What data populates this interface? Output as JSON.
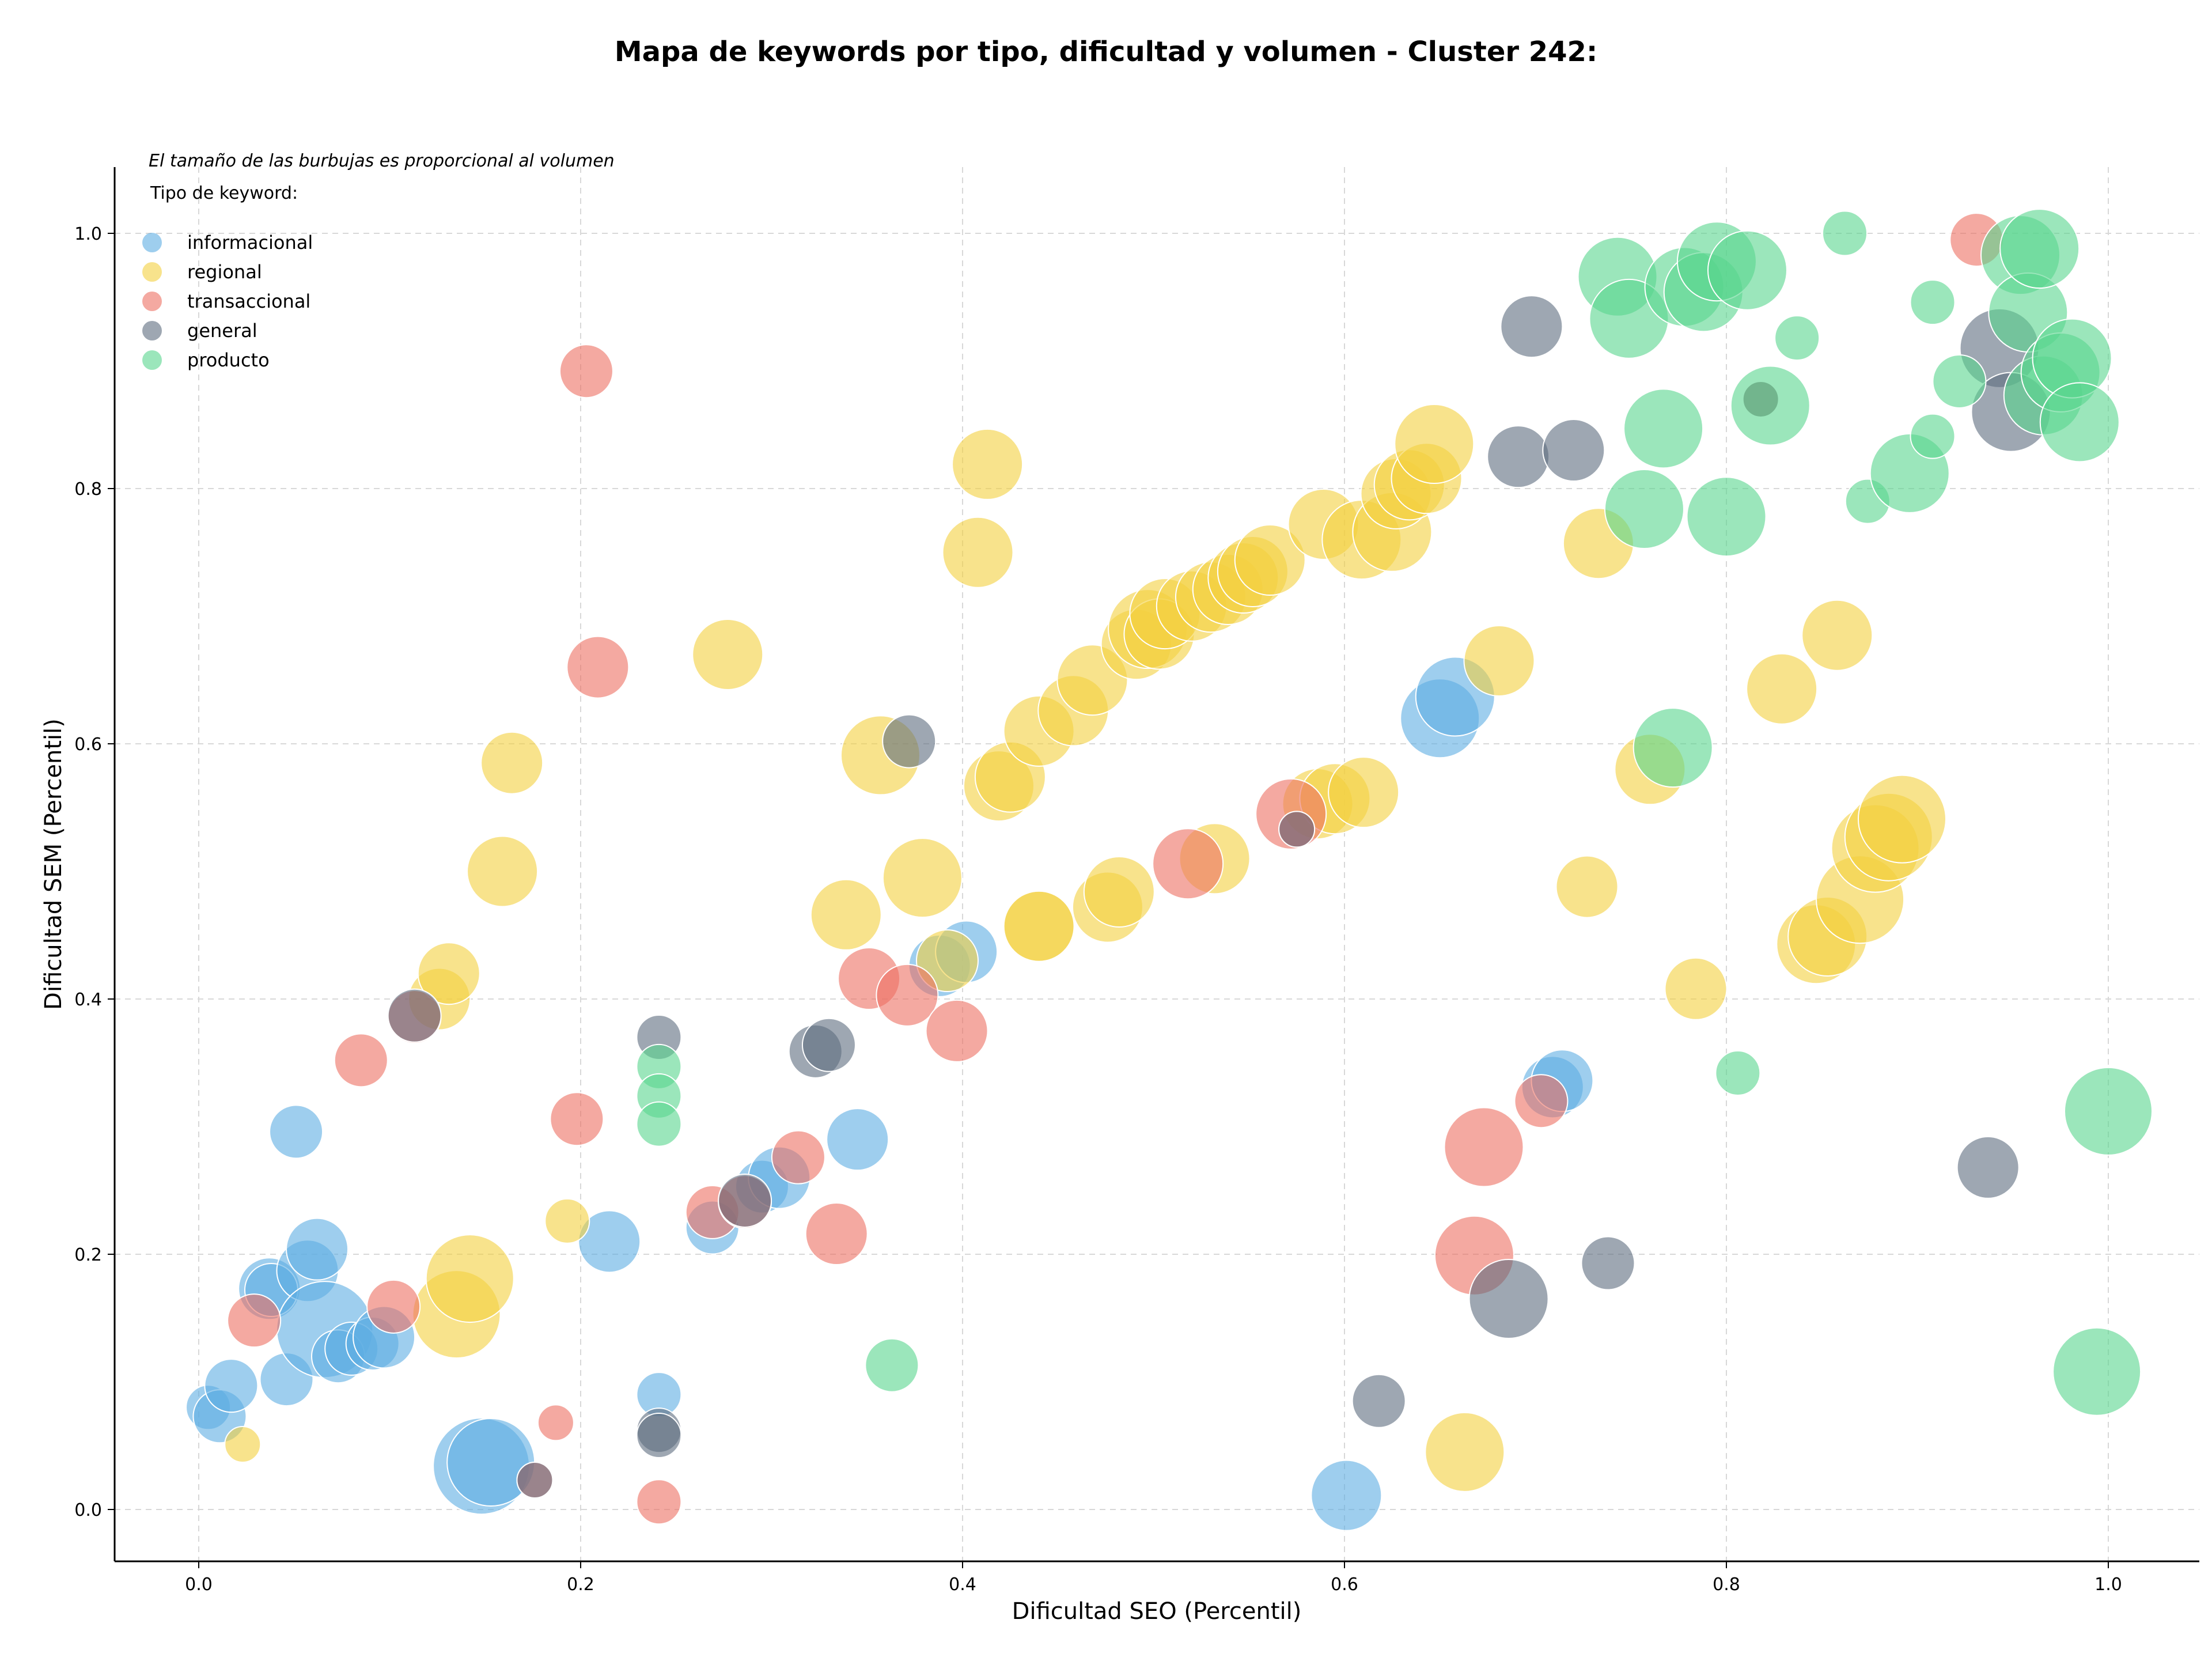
{
  "chart_data": {
    "type": "scatter",
    "title": "Mapa de keywords por tipo, dificultad y volumen - Cluster 242:",
    "xlabel": "Dificultad SEO (Percentil)",
    "ylabel": "Dificultad SEM (Percentil)",
    "xlim": [
      -0.045,
      1.05
    ],
    "ylim": [
      -0.045,
      1.05
    ],
    "xticks": [
      "0.0",
      "0.2",
      "0.4",
      "0.6",
      "0.8",
      "1.0"
    ],
    "yticks": [
      "0.0",
      "0.2",
      "0.4",
      "0.6",
      "0.8",
      "1.0"
    ],
    "grid": true,
    "annotation": "El tamaño de las burbujas es proporcional al volumen",
    "legend_title": "Tipo de keyword:",
    "legend_position": "top-left",
    "series": [
      {
        "name": "informacional",
        "color": "#5DADE2",
        "points": [
          [
            0.005,
            0.08,
            3
          ],
          [
            0.011,
            0.073,
            4
          ],
          [
            0.017,
            0.097,
            4
          ],
          [
            0.046,
            0.102,
            4
          ],
          [
            0.051,
            0.296,
            4
          ],
          [
            0.037,
            0.173,
            5
          ],
          [
            0.038,
            0.172,
            4
          ],
          [
            0.057,
            0.187,
            5
          ],
          [
            0.062,
            0.204,
            5
          ],
          [
            0.066,
            0.141,
            9
          ],
          [
            0.073,
            0.12,
            4
          ],
          [
            0.08,
            0.126,
            4
          ],
          [
            0.091,
            0.13,
            4
          ],
          [
            0.097,
            0.135,
            5
          ],
          [
            0.148,
            0.034,
            9
          ],
          [
            0.153,
            0.037,
            8
          ],
          [
            0.215,
            0.21,
            5
          ],
          [
            0.241,
            0.09,
            3
          ],
          [
            0.269,
            0.221,
            4
          ],
          [
            0.295,
            0.253,
            4
          ],
          [
            0.304,
            0.26,
            5
          ],
          [
            0.345,
            0.29,
            5
          ],
          [
            0.388,
            0.426,
            5
          ],
          [
            0.402,
            0.437,
            5
          ],
          [
            0.601,
            0.011,
            6
          ],
          [
            0.65,
            0.62,
            7
          ],
          [
            0.658,
            0.637,
            7
          ],
          [
            0.709,
            0.331,
            5
          ],
          [
            0.714,
            0.336,
            5
          ]
        ]
      },
      {
        "name": "regional",
        "color": "#F4D03F",
        "points": [
          [
            0.023,
            0.051,
            2
          ],
          [
            0.126,
            0.4,
            5
          ],
          [
            0.131,
            0.42,
            5
          ],
          [
            0.135,
            0.153,
            8
          ],
          [
            0.142,
            0.181,
            8
          ],
          [
            0.159,
            0.5,
            6
          ],
          [
            0.164,
            0.585,
            5
          ],
          [
            0.193,
            0.226,
            3
          ],
          [
            0.277,
            0.67,
            6
          ],
          [
            0.339,
            0.466,
            6
          ],
          [
            0.357,
            0.591,
            7
          ],
          [
            0.379,
            0.495,
            7
          ],
          [
            0.392,
            0.43,
            5
          ],
          [
            0.408,
            0.75,
            6
          ],
          [
            0.413,
            0.819,
            6
          ],
          [
            0.419,
            0.567,
            6
          ],
          [
            0.425,
            0.574,
            6
          ],
          [
            0.44,
            0.457,
            6
          ],
          [
            0.44,
            0.457,
            6
          ],
          [
            0.44,
            0.61,
            6
          ],
          [
            0.458,
            0.626,
            6
          ],
          [
            0.468,
            0.65,
            6
          ],
          [
            0.476,
            0.472,
            6
          ],
          [
            0.482,
            0.484,
            6
          ],
          [
            0.491,
            0.678,
            6
          ],
          [
            0.497,
            0.69,
            7
          ],
          [
            0.503,
            0.686,
            6
          ],
          [
            0.506,
            0.702,
            6
          ],
          [
            0.52,
            0.708,
            6
          ],
          [
            0.53,
            0.715,
            6
          ],
          [
            0.532,
            0.51,
            6
          ],
          [
            0.539,
            0.721,
            6
          ],
          [
            0.547,
            0.73,
            6
          ],
          [
            0.552,
            0.735,
            6
          ],
          [
            0.561,
            0.744,
            6
          ],
          [
            0.586,
            0.553,
            6
          ],
          [
            0.595,
            0.557,
            6
          ],
          [
            0.61,
            0.562,
            6
          ],
          [
            0.589,
            0.772,
            6
          ],
          [
            0.609,
            0.76,
            7
          ],
          [
            0.625,
            0.766,
            7
          ],
          [
            0.627,
            0.796,
            6
          ],
          [
            0.634,
            0.803,
            6
          ],
          [
            0.643,
            0.808,
            6
          ],
          [
            0.647,
            0.835,
            7
          ],
          [
            0.663,
            0.045,
            7
          ],
          [
            0.681,
            0.665,
            6
          ],
          [
            0.727,
            0.488,
            5
          ],
          [
            0.733,
            0.757,
            6
          ],
          [
            0.76,
            0.58,
            6
          ],
          [
            0.784,
            0.408,
            5
          ],
          [
            0.829,
            0.643,
            6
          ],
          [
            0.847,
            0.443,
            7
          ],
          [
            0.853,
            0.449,
            7
          ],
          [
            0.858,
            0.685,
            6
          ],
          [
            0.87,
            0.478,
            8
          ],
          [
            0.878,
            0.518,
            8
          ],
          [
            0.885,
            0.527,
            8
          ],
          [
            0.892,
            0.541,
            8
          ]
        ]
      },
      {
        "name": "transaccional",
        "color": "#EC7063",
        "points": [
          [
            0.029,
            0.148,
            4
          ],
          [
            0.085,
            0.352,
            4
          ],
          [
            0.102,
            0.159,
            4
          ],
          [
            0.113,
            0.386,
            4
          ],
          [
            0.176,
            0.023,
            2
          ],
          [
            0.187,
            0.068,
            2
          ],
          [
            0.198,
            0.306,
            4
          ],
          [
            0.203,
            0.892,
            4
          ],
          [
            0.209,
            0.66,
            5
          ],
          [
            0.241,
            0.006,
            3
          ],
          [
            0.269,
            0.233,
            4
          ],
          [
            0.286,
            0.241,
            4
          ],
          [
            0.314,
            0.276,
            4
          ],
          [
            0.334,
            0.216,
            5
          ],
          [
            0.351,
            0.416,
            5
          ],
          [
            0.371,
            0.403,
            5
          ],
          [
            0.397,
            0.375,
            5
          ],
          [
            0.518,
            0.506,
            6
          ],
          [
            0.572,
            0.545,
            6
          ],
          [
            0.575,
            0.533,
            2
          ],
          [
            0.673,
            0.284,
            7
          ],
          [
            0.668,
            0.199,
            7
          ],
          [
            0.703,
            0.32,
            4
          ],
          [
            0.931,
            0.995,
            4
          ],
          [
            0.818,
            0.87,
            2
          ]
        ]
      },
      {
        "name": "general",
        "color": "#5D6D7E",
        "points": [
          [
            0.113,
            0.387,
            4
          ],
          [
            0.176,
            0.023,
            2
          ],
          [
            0.241,
            0.37,
            3
          ],
          [
            0.241,
            0.062,
            3
          ],
          [
            0.241,
            0.058,
            3
          ],
          [
            0.286,
            0.242,
            4
          ],
          [
            0.323,
            0.359,
            4
          ],
          [
            0.33,
            0.364,
            4
          ],
          [
            0.372,
            0.602,
            4
          ],
          [
            0.575,
            0.533,
            2
          ],
          [
            0.618,
            0.085,
            4
          ],
          [
            0.686,
            0.165,
            7
          ],
          [
            0.691,
            0.825,
            5
          ],
          [
            0.698,
            0.927,
            5
          ],
          [
            0.72,
            0.83,
            5
          ],
          [
            0.738,
            0.193,
            4
          ],
          [
            0.818,
            0.87,
            2
          ],
          [
            0.937,
            0.268,
            5
          ],
          [
            0.943,
            0.91,
            7
          ],
          [
            0.949,
            0.86,
            7
          ]
        ]
      },
      {
        "name": "producto",
        "color": "#58D68D",
        "points": [
          [
            0.241,
            0.347,
            3
          ],
          [
            0.241,
            0.324,
            3
          ],
          [
            0.241,
            0.302,
            3
          ],
          [
            0.363,
            0.113,
            4
          ],
          [
            0.743,
            0.966,
            7
          ],
          [
            0.749,
            0.933,
            7
          ],
          [
            0.757,
            0.784,
            7
          ],
          [
            0.767,
            0.847,
            7
          ],
          [
            0.772,
            0.597,
            7
          ],
          [
            0.778,
            0.958,
            7
          ],
          [
            0.788,
            0.954,
            7
          ],
          [
            0.795,
            0.978,
            7
          ],
          [
            0.8,
            0.778,
            7
          ],
          [
            0.806,
            0.342,
            3
          ],
          [
            0.811,
            0.971,
            7
          ],
          [
            0.823,
            0.865,
            7
          ],
          [
            0.837,
            0.918,
            3
          ],
          [
            0.862,
            1.0,
            3
          ],
          [
            0.874,
            0.79,
            3
          ],
          [
            0.896,
            0.812,
            7
          ],
          [
            0.908,
            0.946,
            3
          ],
          [
            0.908,
            0.841,
            3
          ],
          [
            0.922,
            0.884,
            4
          ],
          [
            0.954,
            0.983,
            7
          ],
          [
            0.958,
            0.938,
            7
          ],
          [
            0.964,
            0.988,
            7
          ],
          [
            0.966,
            0.873,
            7
          ],
          [
            0.975,
            0.891,
            7
          ],
          [
            0.981,
            0.902,
            7
          ],
          [
            0.985,
            0.852,
            7
          ],
          [
            0.994,
            0.108,
            8
          ],
          [
            1.0,
            0.312,
            8
          ]
        ]
      }
    ]
  }
}
